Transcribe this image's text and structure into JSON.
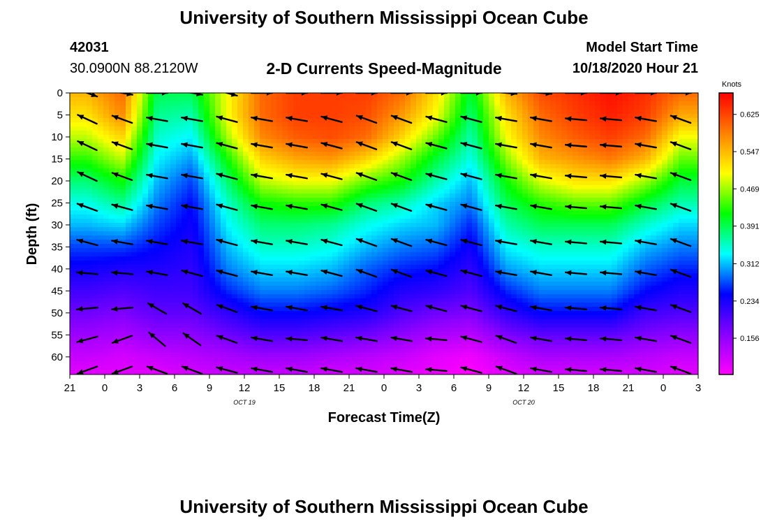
{
  "header": {
    "title": "University of Southern Mississippi Ocean Cube",
    "station_id": "42031",
    "station_location": "30.0900N 88.2120W",
    "subtitle": "2-D Currents Speed-Magnitude",
    "model_start_label": "Model Start Time",
    "model_start_value": "10/18/2020 Hour 21"
  },
  "footer": {
    "title": "University of Southern Mississippi Ocean Cube"
  },
  "chart_data": {
    "type": "heatmap",
    "title": "2-D Currents Speed-Magnitude",
    "xlabel": "Forecast Time(Z)",
    "ylabel": "Depth (ft)",
    "x_tick_labels": [
      "21",
      "0",
      "3",
      "6",
      "9",
      "12",
      "15",
      "18",
      "21",
      "0",
      "3",
      "6",
      "9",
      "12",
      "15",
      "18",
      "21",
      "0",
      "3"
    ],
    "x_range_hours": [
      0,
      54
    ],
    "date_labels": [
      {
        "label": "OCT 19",
        "at_hour": 15
      },
      {
        "label": "OCT 20",
        "at_hour": 39
      }
    ],
    "y_ticks": [
      0,
      5,
      10,
      15,
      20,
      25,
      30,
      35,
      40,
      45,
      50,
      55,
      60
    ],
    "ylim": [
      0,
      64
    ],
    "y_inverted": true,
    "colorbar": {
      "unit": "Knots",
      "ticks": [
        0.625,
        0.547,
        0.469,
        0.391,
        0.312,
        0.234,
        0.156
      ],
      "range": [
        0.08,
        0.67
      ],
      "colors": [
        "#ff00ff",
        "#8800ff",
        "#0000ff",
        "#00ffff",
        "#00ff00",
        "#ffff00",
        "#ff8000",
        "#ff0000"
      ]
    },
    "time_hours": [
      1.5,
      4.5,
      7.5,
      10.5,
      13.5,
      16.5,
      19.5,
      22.5,
      25.5,
      28.5,
      31.5,
      34.5,
      37.5,
      40.5,
      43.5,
      46.5,
      49.5,
      52.5
    ],
    "depths_ft": [
      0,
      5,
      10,
      15,
      20,
      25,
      30,
      35,
      40,
      45,
      50,
      55,
      60,
      64
    ],
    "speed_knots": [
      [
        0.55,
        0.6,
        0.39,
        0.39,
        0.5,
        0.6,
        0.63,
        0.63,
        0.63,
        0.6,
        0.52,
        0.4,
        0.55,
        0.62,
        0.64,
        0.66,
        0.64,
        0.6
      ],
      [
        0.52,
        0.58,
        0.37,
        0.36,
        0.5,
        0.6,
        0.63,
        0.63,
        0.62,
        0.57,
        0.5,
        0.38,
        0.52,
        0.6,
        0.63,
        0.65,
        0.63,
        0.56
      ],
      [
        0.48,
        0.53,
        0.35,
        0.33,
        0.47,
        0.58,
        0.61,
        0.62,
        0.6,
        0.53,
        0.45,
        0.36,
        0.5,
        0.58,
        0.61,
        0.63,
        0.6,
        0.5
      ],
      [
        0.43,
        0.48,
        0.33,
        0.3,
        0.42,
        0.53,
        0.56,
        0.57,
        0.53,
        0.47,
        0.4,
        0.34,
        0.46,
        0.55,
        0.57,
        0.59,
        0.55,
        0.45
      ],
      [
        0.38,
        0.42,
        0.31,
        0.27,
        0.38,
        0.48,
        0.5,
        0.5,
        0.45,
        0.42,
        0.36,
        0.31,
        0.42,
        0.49,
        0.52,
        0.52,
        0.47,
        0.4
      ],
      [
        0.34,
        0.37,
        0.29,
        0.25,
        0.35,
        0.42,
        0.43,
        0.43,
        0.38,
        0.36,
        0.32,
        0.29,
        0.39,
        0.43,
        0.45,
        0.45,
        0.4,
        0.36
      ],
      [
        0.31,
        0.32,
        0.27,
        0.24,
        0.33,
        0.38,
        0.38,
        0.37,
        0.34,
        0.32,
        0.31,
        0.26,
        0.36,
        0.39,
        0.39,
        0.39,
        0.35,
        0.32
      ],
      [
        0.27,
        0.27,
        0.25,
        0.23,
        0.31,
        0.35,
        0.35,
        0.34,
        0.31,
        0.29,
        0.28,
        0.24,
        0.33,
        0.35,
        0.35,
        0.35,
        0.31,
        0.29
      ],
      [
        0.24,
        0.23,
        0.23,
        0.22,
        0.29,
        0.32,
        0.32,
        0.31,
        0.28,
        0.26,
        0.25,
        0.22,
        0.3,
        0.32,
        0.32,
        0.32,
        0.28,
        0.26
      ],
      [
        0.21,
        0.2,
        0.21,
        0.21,
        0.26,
        0.29,
        0.29,
        0.28,
        0.26,
        0.23,
        0.22,
        0.2,
        0.26,
        0.29,
        0.29,
        0.29,
        0.25,
        0.23
      ],
      [
        0.18,
        0.17,
        0.19,
        0.19,
        0.22,
        0.25,
        0.25,
        0.24,
        0.23,
        0.2,
        0.18,
        0.17,
        0.22,
        0.25,
        0.25,
        0.25,
        0.21,
        0.2
      ],
      [
        0.15,
        0.14,
        0.16,
        0.16,
        0.18,
        0.2,
        0.2,
        0.19,
        0.18,
        0.16,
        0.14,
        0.13,
        0.17,
        0.19,
        0.19,
        0.19,
        0.17,
        0.16
      ],
      [
        0.12,
        0.11,
        0.12,
        0.13,
        0.14,
        0.15,
        0.15,
        0.14,
        0.13,
        0.12,
        0.1,
        0.09,
        0.12,
        0.14,
        0.14,
        0.14,
        0.13,
        0.12
      ],
      [
        0.1,
        0.1,
        0.1,
        0.11,
        0.12,
        0.12,
        0.12,
        0.11,
        0.11,
        0.1,
        0.09,
        0.08,
        0.1,
        0.11,
        0.11,
        0.11,
        0.11,
        0.1
      ]
    ],
    "vector_times_hours": [
      1.5,
      4.5,
      7.5,
      10.5,
      13.5,
      16.5,
      19.5,
      22.5,
      25.5,
      28.5,
      31.5,
      34.5,
      37.5,
      40.5,
      43.5,
      46.5,
      49.5,
      52.5
    ],
    "vector_depths_ft": [
      0,
      6,
      12,
      19,
      26,
      34,
      41,
      49,
      56,
      63
    ],
    "vector_direction_deg": [
      [
        200,
        190,
        180,
        190,
        195,
        180,
        180,
        180,
        180,
        180,
        180,
        180,
        185,
        185,
        180,
        180,
        180,
        180
      ],
      [
        25,
        20,
        10,
        10,
        15,
        10,
        10,
        15,
        20,
        20,
        15,
        15,
        10,
        10,
        5,
        5,
        10,
        20
      ],
      [
        25,
        20,
        10,
        10,
        15,
        10,
        10,
        15,
        20,
        20,
        15,
        15,
        10,
        10,
        5,
        5,
        10,
        20
      ],
      [
        25,
        20,
        10,
        10,
        15,
        10,
        10,
        15,
        20,
        20,
        15,
        15,
        10,
        10,
        5,
        5,
        10,
        20
      ],
      [
        20,
        15,
        10,
        10,
        15,
        10,
        10,
        15,
        20,
        20,
        15,
        15,
        10,
        10,
        5,
        5,
        10,
        20
      ],
      [
        15,
        10,
        10,
        10,
        15,
        10,
        10,
        15,
        20,
        20,
        15,
        15,
        10,
        10,
        5,
        5,
        10,
        20
      ],
      [
        5,
        5,
        10,
        15,
        15,
        10,
        10,
        15,
        20,
        20,
        15,
        15,
        10,
        10,
        5,
        5,
        10,
        20
      ],
      [
        355,
        355,
        30,
        30,
        20,
        10,
        10,
        10,
        15,
        15,
        15,
        15,
        15,
        10,
        5,
        5,
        10,
        20
      ],
      [
        345,
        340,
        40,
        35,
        20,
        10,
        5,
        10,
        10,
        10,
        5,
        15,
        20,
        10,
        5,
        5,
        10,
        20
      ],
      [
        340,
        340,
        20,
        20,
        15,
        10,
        10,
        10,
        10,
        10,
        5,
        15,
        20,
        10,
        5,
        5,
        10,
        20
      ]
    ]
  }
}
